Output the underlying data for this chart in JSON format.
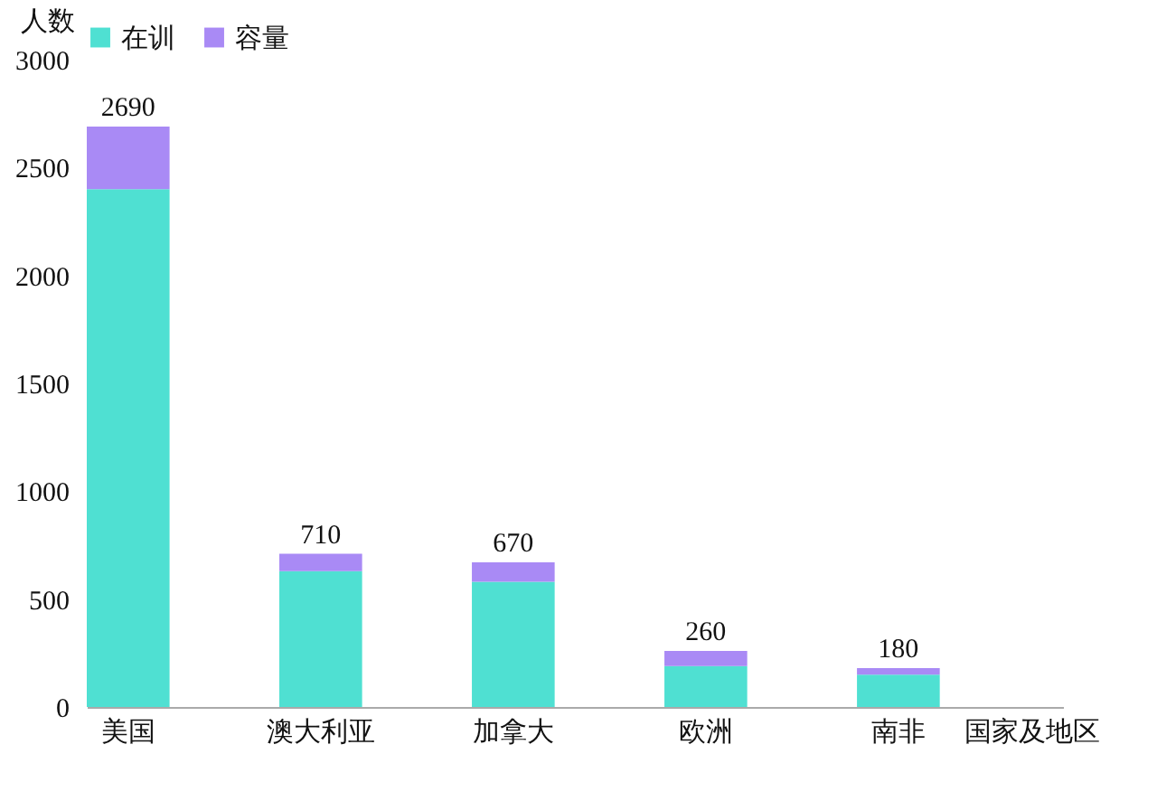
{
  "chart_data": {
    "type": "bar",
    "stacked": true,
    "ylabel": "人数",
    "xlabel": "国家及地区",
    "categories": [
      "美国",
      "澳大利亚",
      "加拿大",
      "欧洲",
      "南非"
    ],
    "series": [
      {
        "name": "在训",
        "color": "#4fe0d2",
        "values": [
          2400,
          630,
          580,
          190,
          150
        ]
      },
      {
        "name": "容量",
        "color": "#a98af5",
        "values": [
          290,
          80,
          90,
          70,
          30
        ]
      }
    ],
    "totals": [
      "2690",
      "710",
      "670",
      "260",
      "180"
    ],
    "ylim": [
      0,
      3000
    ],
    "yticks": [
      0,
      500,
      1000,
      1500,
      2000,
      2500,
      3000
    ],
    "grid": false,
    "legend": "top"
  }
}
